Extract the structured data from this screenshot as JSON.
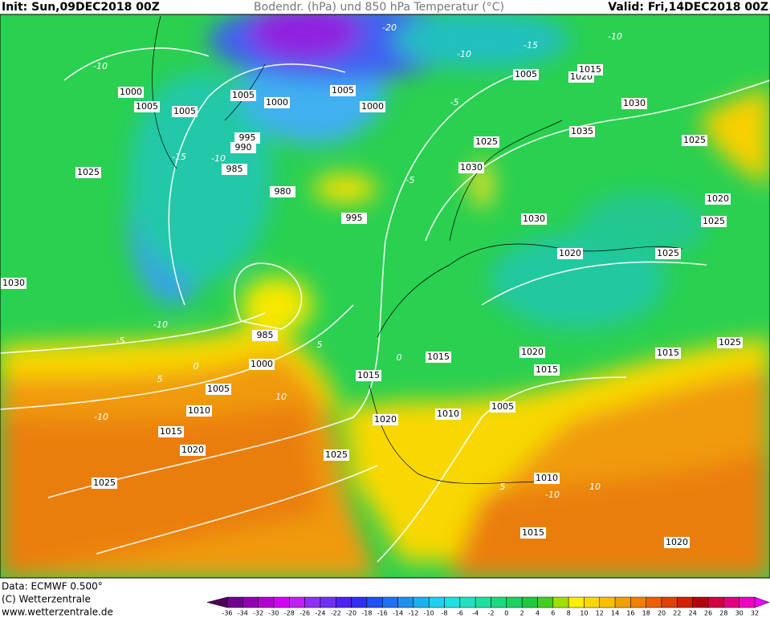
{
  "header": {
    "init": "Init: Sun,09DEC2018 00Z",
    "title": "Bodendr. (hPa) und 850 hPa Temperatur (°C)",
    "valid": "Valid: Fri,14DEC2018 00Z"
  },
  "isobars": [
    1000,
    1005,
    1005,
    1005,
    1000,
    1005,
    1000,
    995,
    990,
    985,
    980,
    995,
    1025,
    1030,
    985,
    1000,
    1005,
    1010,
    1015,
    1020,
    1025,
    1025,
    1020,
    1015,
    1015,
    1010,
    1005,
    1020,
    1015,
    1010,
    1015,
    1020,
    1025,
    1015,
    1025,
    1020,
    1030,
    1030,
    1025,
    1035,
    1030,
    1005,
    1020,
    1015,
    1025,
    1020,
    1025
  ],
  "isotherms": [
    -10,
    -15,
    -10,
    -20,
    -15,
    -10,
    -10,
    -5,
    -5,
    -5,
    -10,
    0,
    5,
    10,
    -10,
    0,
    5,
    5,
    10,
    -10
  ],
  "footer": {
    "data": "Data: ECMWF   0.500°",
    "copyright": "(C) Wetterzentrale",
    "url": "www.wetterzentrale.de"
  },
  "colorbar": {
    "ticks": [
      -36,
      -34,
      -32,
      -30,
      -28,
      -26,
      -24,
      -22,
      -20,
      -18,
      -16,
      -14,
      -12,
      -10,
      -8,
      -6,
      -4,
      -2,
      0,
      2,
      4,
      6,
      8,
      10,
      12,
      14,
      16,
      18,
      20,
      22,
      24,
      26,
      28,
      30,
      32
    ],
    "colors": [
      "#50005a",
      "#700090",
      "#9000b0",
      "#b000d0",
      "#d000f0",
      "#c020f0",
      "#9030f0",
      "#7030f0",
      "#5020f0",
      "#3030f0",
      "#2050f0",
      "#2070f0",
      "#2090f0",
      "#20b0f0",
      "#20d0f0",
      "#20e0e0",
      "#20e0c0",
      "#20e0a0",
      "#20d880",
      "#20d060",
      "#20c840",
      "#40d020",
      "#a0e000",
      "#f8f000",
      "#f8d800",
      "#f8c000",
      "#f0a000",
      "#f08000",
      "#e86000",
      "#e04000",
      "#d02000",
      "#b00010",
      "#d00040",
      "#e00080",
      "#f000c0",
      "#f000f0"
    ]
  }
}
